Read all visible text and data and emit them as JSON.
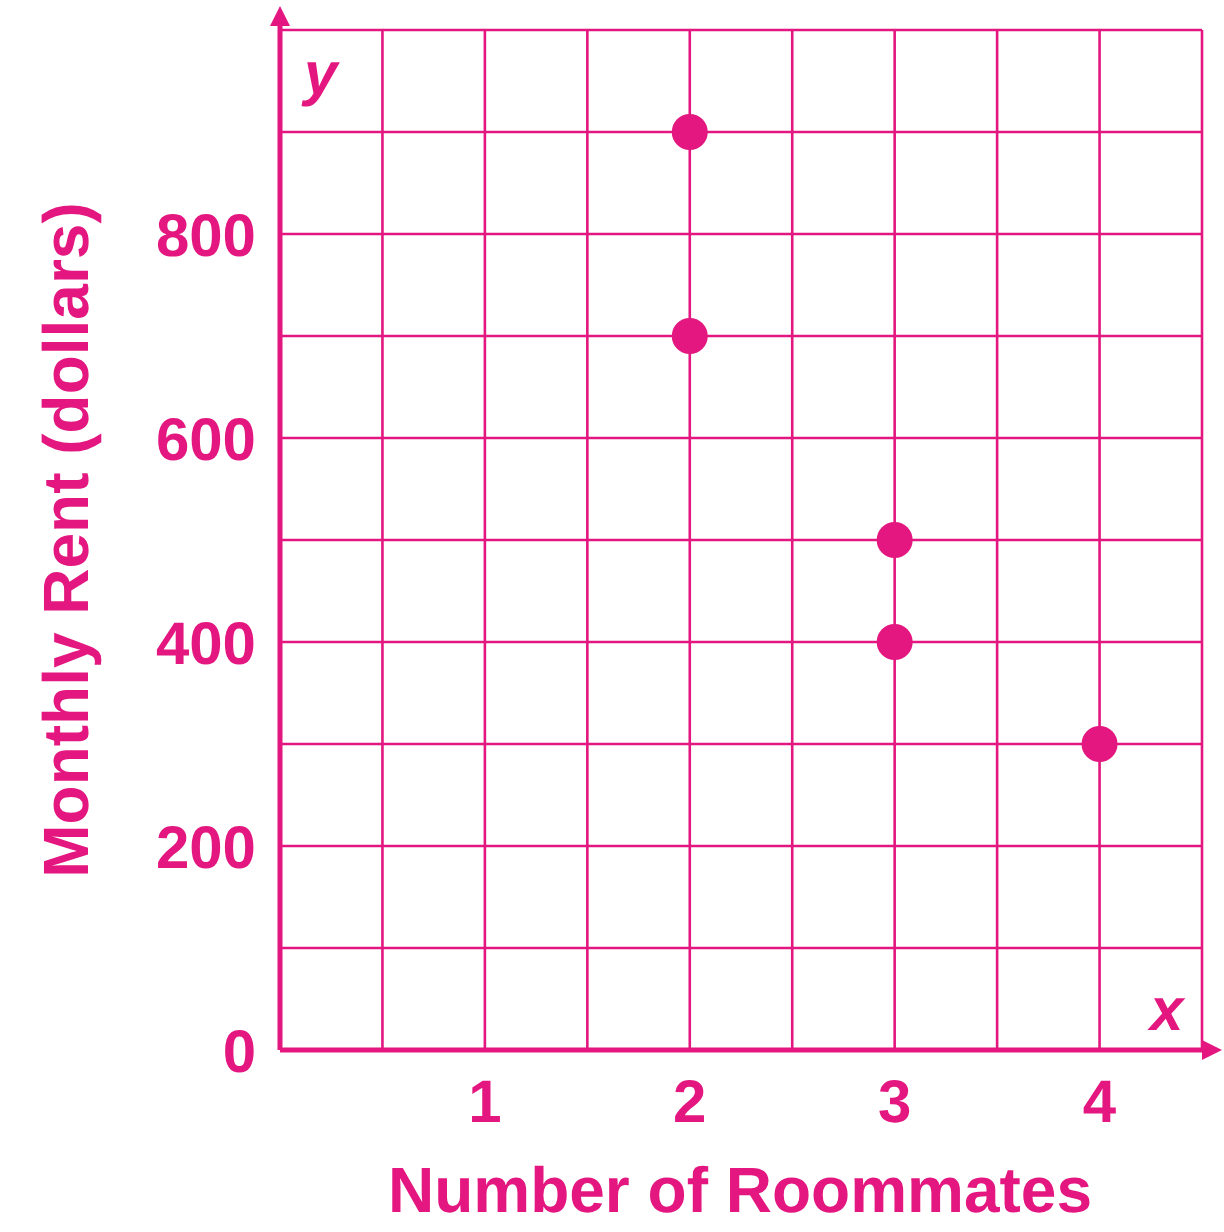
{
  "chart_data": {
    "type": "scatter",
    "xlabel": "Number of Roommates",
    "ylabel": "Monthly Rent (dollars)",
    "x": [
      2,
      2,
      3,
      3,
      4
    ],
    "series": [
      {
        "color": "#e3177f",
        "values": [
          900,
          700,
          500,
          400,
          300
        ]
      }
    ],
    "xlim": [
      0,
      4.5
    ],
    "ylim": [
      0,
      1000
    ],
    "xticks": [
      {
        "value": 0.5,
        "label": null
      },
      1,
      {
        "value": 1.5,
        "label": null
      },
      2,
      {
        "value": 2.5,
        "label": null
      },
      3,
      {
        "value": 3.5,
        "label": null
      },
      4
    ],
    "yticks": [
      0,
      {
        "value": 100,
        "label": null
      },
      200,
      {
        "value": 300,
        "label": null
      },
      400,
      {
        "value": 500,
        "label": null
      },
      600,
      {
        "value": 700,
        "label": null
      },
      800,
      {
        "value": 900,
        "label": null
      }
    ],
    "grid": true,
    "marker": "circle",
    "annotations": [
      "x",
      "y"
    ]
  }
}
